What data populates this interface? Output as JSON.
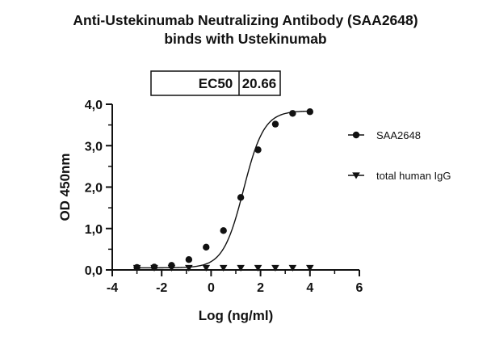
{
  "chart_data": {
    "type": "scatter",
    "title": "Anti-Ustekinumab Neutralizing Antibody (SAA2648)",
    "subtitle": "binds with Ustekinumab",
    "xlabel": "Log (ng/ml)",
    "ylabel": "OD 450nm",
    "xlim": [
      -4,
      6
    ],
    "ylim": [
      0,
      4
    ],
    "x_ticks": [
      "-4",
      "-2",
      "0",
      "2",
      "4",
      "6"
    ],
    "y_ticks": [
      "0,0",
      "1,0",
      "2,0",
      "3,0",
      "4,0"
    ],
    "grid": false,
    "legend_position": "right",
    "ec50_table": {
      "label": "EC50",
      "value": "20.66"
    },
    "series": [
      {
        "name": "SAA2648",
        "marker": "circle",
        "fit": "sigmoidal",
        "color": "#111111",
        "x": [
          -3.0,
          -2.3,
          -1.6,
          -0.9,
          -0.2,
          0.5,
          1.2,
          1.9,
          2.6,
          3.3,
          4.0
        ],
        "y": [
          0.06,
          0.07,
          0.11,
          0.25,
          0.55,
          0.95,
          1.75,
          2.9,
          3.52,
          3.78,
          3.82
        ]
      },
      {
        "name": "total human IgG",
        "marker": "triangle-down",
        "color": "#111111",
        "x": [
          -3.0,
          -2.3,
          -1.6,
          -0.9,
          -0.2,
          0.5,
          1.2,
          1.9,
          2.6,
          3.3,
          4.0
        ],
        "y": [
          0.05,
          0.05,
          0.05,
          0.05,
          0.05,
          0.05,
          0.05,
          0.05,
          0.05,
          0.05,
          0.05
        ]
      }
    ]
  }
}
